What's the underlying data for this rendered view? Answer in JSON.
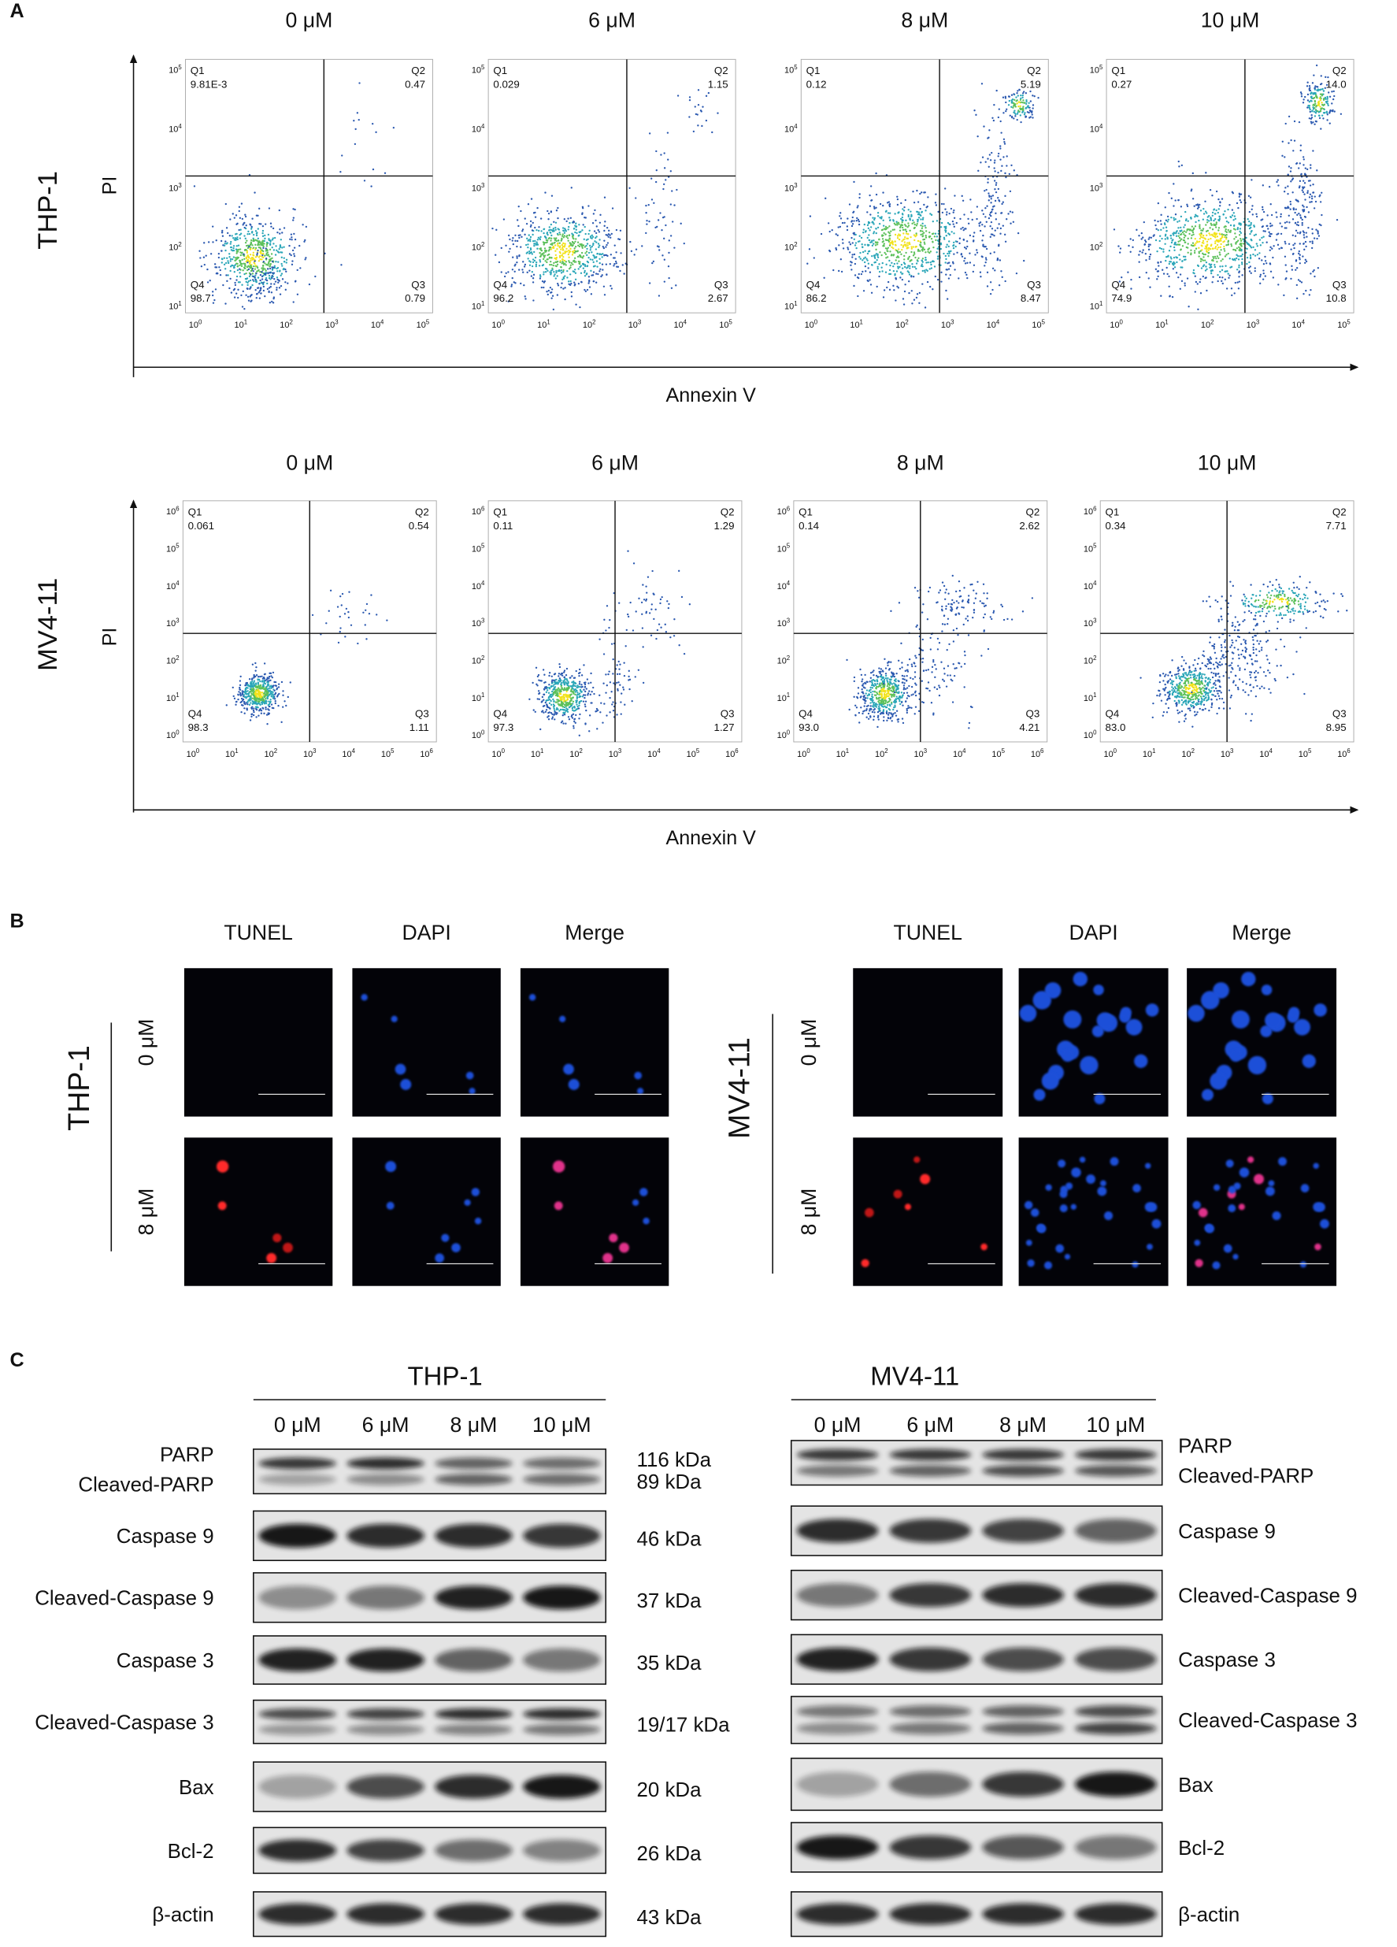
{
  "panel_a": {
    "label": "A",
    "tick_base": "10",
    "rows": [
      {
        "cell_line": "THP-1",
        "y_axis": "PI",
        "x_axis": "Annexin V",
        "x_tick_exponents": [
          "0",
          "1",
          "2",
          "3",
          "4",
          "5"
        ],
        "y_tick_exponents": [
          "1",
          "2",
          "3",
          "4",
          "5"
        ],
        "plots": [
          {
            "concentration": "0 μM",
            "quadrants": [
              {
                "name": "Q1",
                "value": "9.81E-3"
              },
              {
                "name": "Q2",
                "value": "0.47"
              },
              {
                "name": "Q3",
                "value": "0.79"
              },
              {
                "name": "Q4",
                "value": "98.7"
              }
            ]
          },
          {
            "concentration": "6 μM",
            "quadrants": [
              {
                "name": "Q1",
                "value": "0.029"
              },
              {
                "name": "Q2",
                "value": "1.15"
              },
              {
                "name": "Q3",
                "value": "2.67"
              },
              {
                "name": "Q4",
                "value": "96.2"
              }
            ]
          },
          {
            "concentration": "8 μM",
            "quadrants": [
              {
                "name": "Q1",
                "value": "0.12"
              },
              {
                "name": "Q2",
                "value": "5.19"
              },
              {
                "name": "Q3",
                "value": "8.47"
              },
              {
                "name": "Q4",
                "value": "86.2"
              }
            ]
          },
          {
            "concentration": "10 μM",
            "quadrants": [
              {
                "name": "Q1",
                "value": "0.27"
              },
              {
                "name": "Q2",
                "value": "14.0"
              },
              {
                "name": "Q3",
                "value": "10.8"
              },
              {
                "name": "Q4",
                "value": "74.9"
              }
            ]
          }
        ]
      },
      {
        "cell_line": "MV4-11",
        "y_axis": "PI",
        "x_axis": "Annexin V",
        "x_tick_exponents": [
          "0",
          "1",
          "2",
          "3",
          "4",
          "5",
          "6"
        ],
        "y_tick_exponents": [
          "0",
          "1",
          "2",
          "3",
          "4",
          "5",
          "6"
        ],
        "plots": [
          {
            "concentration": "0 μM",
            "quadrants": [
              {
                "name": "Q1",
                "value": "0.061"
              },
              {
                "name": "Q2",
                "value": "0.54"
              },
              {
                "name": "Q3",
                "value": "1.11"
              },
              {
                "name": "Q4",
                "value": "98.3"
              }
            ]
          },
          {
            "concentration": "6 μM",
            "quadrants": [
              {
                "name": "Q1",
                "value": "0.11"
              },
              {
                "name": "Q2",
                "value": "1.29"
              },
              {
                "name": "Q3",
                "value": "1.27"
              },
              {
                "name": "Q4",
                "value": "97.3"
              }
            ]
          },
          {
            "concentration": "8 μM",
            "quadrants": [
              {
                "name": "Q1",
                "value": "0.14"
              },
              {
                "name": "Q2",
                "value": "2.62"
              },
              {
                "name": "Q3",
                "value": "4.21"
              },
              {
                "name": "Q4",
                "value": "93.0"
              }
            ]
          },
          {
            "concentration": "10 μM",
            "quadrants": [
              {
                "name": "Q1",
                "value": "0.34"
              },
              {
                "name": "Q2",
                "value": "7.71"
              },
              {
                "name": "Q3",
                "value": "8.95"
              },
              {
                "name": "Q4",
                "value": "83.0"
              }
            ]
          }
        ]
      }
    ]
  },
  "panel_b": {
    "label": "B",
    "groups": [
      {
        "cell_line": "THP-1",
        "stains": [
          "TUNEL",
          "DAPI",
          "Merge"
        ],
        "concentrations": [
          "0 μM",
          "8 μM"
        ]
      },
      {
        "cell_line": "MV4-11",
        "stains": [
          "TUNEL",
          "DAPI",
          "Merge"
        ],
        "concentrations": [
          "0 μM",
          "8 μM"
        ]
      }
    ]
  },
  "panel_c": {
    "label": "C",
    "blots": [
      {
        "cell_line": "THP-1",
        "concentrations": [
          "0 μM",
          "6 μM",
          "8 μM",
          "10 μM"
        ],
        "rows": [
          {
            "proteins": [
              "PARP",
              "Cleaved-PARP"
            ],
            "sizes": [
              "116 kDa",
              "89 kDa"
            ]
          },
          {
            "proteins": [
              "Caspase 9"
            ],
            "sizes": [
              "46 kDa"
            ]
          },
          {
            "proteins": [
              "Cleaved-Caspase 9"
            ],
            "sizes": [
              "37 kDa"
            ]
          },
          {
            "proteins": [
              "Caspase 3"
            ],
            "sizes": [
              "35 kDa"
            ]
          },
          {
            "proteins": [
              "Cleaved-Caspase 3"
            ],
            "sizes": [
              "19/17 kDa"
            ]
          },
          {
            "proteins": [
              "Bax"
            ],
            "sizes": [
              "20 kDa"
            ]
          },
          {
            "proteins": [
              "Bcl-2"
            ],
            "sizes": [
              "26 kDa"
            ]
          },
          {
            "proteins": [
              "β-actin"
            ],
            "sizes": [
              "43 kDa"
            ]
          }
        ]
      },
      {
        "cell_line": "MV4-11",
        "concentrations": [
          "0 μM",
          "6 μM",
          "8 μM",
          "10 μM"
        ],
        "rows": [
          {
            "proteins": [
              "PARP",
              "Cleaved-PARP"
            ]
          },
          {
            "proteins": [
              "Caspase 9"
            ]
          },
          {
            "proteins": [
              "Cleaved-Caspase 9"
            ]
          },
          {
            "proteins": [
              "Caspase 3"
            ]
          },
          {
            "proteins": [
              "Cleaved-Caspase 3"
            ]
          },
          {
            "proteins": [
              "Bax"
            ]
          },
          {
            "proteins": [
              "Bcl-2"
            ]
          },
          {
            "proteins": [
              "β-actin"
            ]
          }
        ]
      }
    ]
  }
}
